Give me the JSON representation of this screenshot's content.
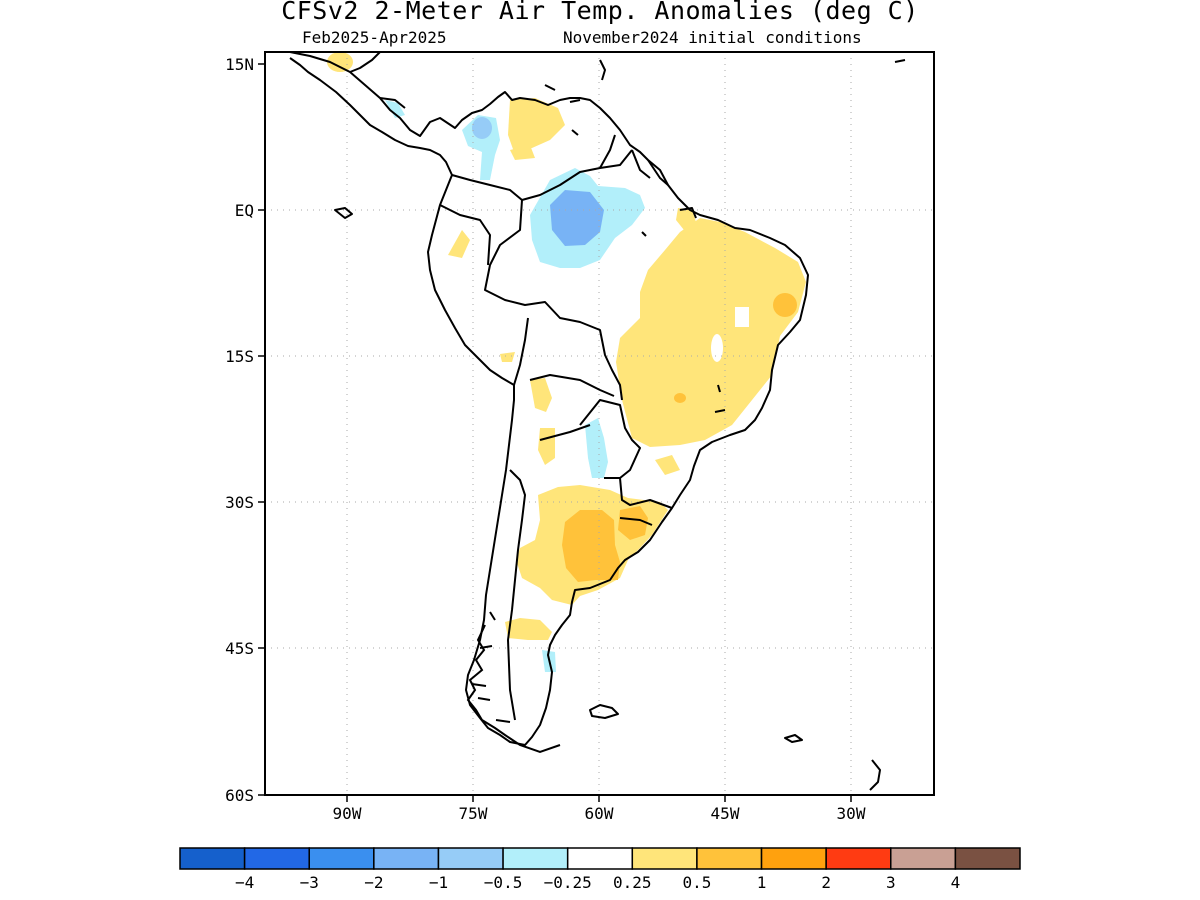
{
  "header": {
    "title": "CFSv2 2-Meter Air Temp. Anomalies (deg C)",
    "period": "Feb2025-Apr2025",
    "initial_conditions": "November2024 initial conditions"
  },
  "map": {
    "lat_labels": [
      "15N",
      "EQ",
      "15S",
      "30S",
      "45S",
      "60S"
    ],
    "lon_labels": [
      "90W",
      "75W",
      "60W",
      "45W",
      "30W"
    ]
  },
  "colorbar": {
    "colors": [
      "#1560cc",
      "#2268e6",
      "#3a8fef",
      "#78b3f5",
      "#96ccf7",
      "#b2effa",
      "#ffffff",
      "#ffe57a",
      "#ffc23a",
      "#ffa10e",
      "#ff3b12",
      "#c9a094",
      "#7a5142"
    ],
    "labels": [
      "-4",
      "-3",
      "-2",
      "-1",
      "-0.5",
      "-0.25",
      "0.25",
      "0.5",
      "1",
      "2",
      "3",
      "4"
    ]
  }
}
